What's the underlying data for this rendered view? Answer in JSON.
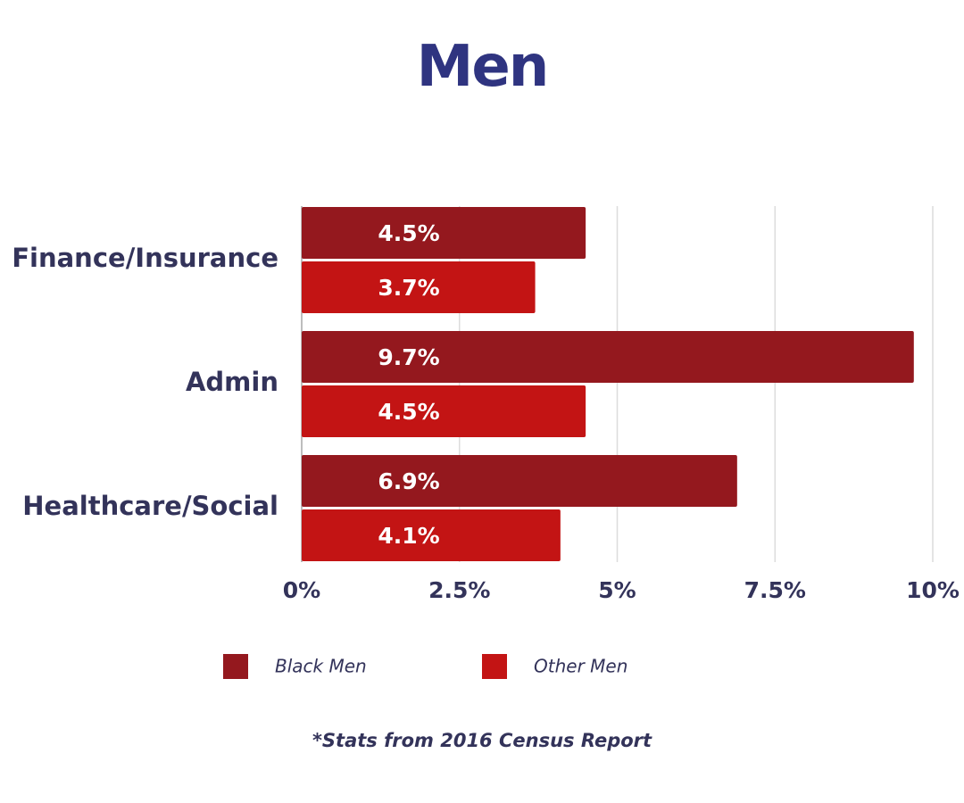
{
  "chart_data": {
    "type": "bar",
    "orientation": "horizontal",
    "title": "Men",
    "categories": [
      "Finance/Insurance",
      "Admin",
      "Healthcare/Social"
    ],
    "series": [
      {
        "name": "Black Men",
        "values": [
          4.5,
          9.7,
          6.9
        ],
        "labels": [
          "4.5%",
          "9.7%",
          "6.9%"
        ],
        "color": "#94181e"
      },
      {
        "name": "Other Men",
        "values": [
          3.7,
          4.5,
          4.1
        ],
        "labels": [
          "3.7%",
          "4.5%",
          "4.1%"
        ],
        "color": "#c31414"
      }
    ],
    "x_ticks": [
      0,
      2.5,
      5,
      7.5,
      10
    ],
    "x_tick_labels": [
      "0%",
      "2.5%",
      "5%",
      "7.5%",
      "10%"
    ],
    "xlim": [
      0,
      10
    ],
    "grid": "vertical",
    "legend_position": "bottom",
    "footnote": "*Stats from 2016 Census Report"
  },
  "colors": {
    "title": "#2f3480",
    "text": "#33335a",
    "grid": "#dcdcdc",
    "axis": "#bdbdbd"
  }
}
